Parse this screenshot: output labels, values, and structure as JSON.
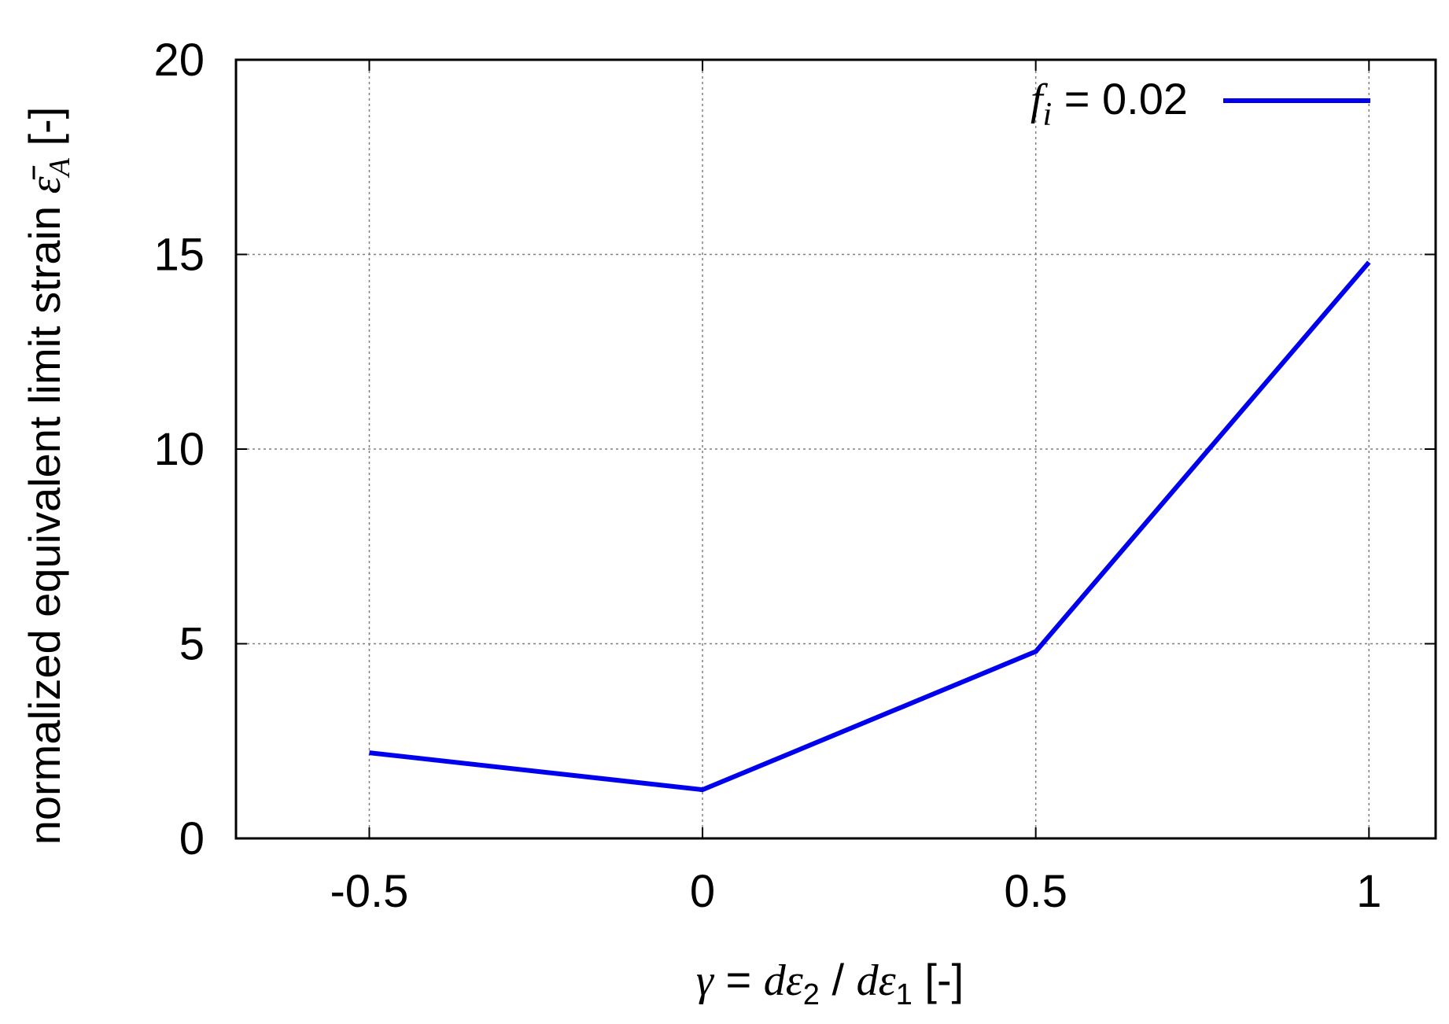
{
  "chart_data": {
    "type": "line",
    "title": "",
    "xlabel": {
      "parts": [
        "γ",
        " = ",
        "d",
        "ε",
        "2",
        " / ",
        "d",
        "ε",
        "1",
        " [-]"
      ]
    },
    "ylabel": {
      "parts": [
        "normalized equivalent limit strain ",
        "ε̄",
        "A",
        " [-]"
      ]
    },
    "xlim": [
      -0.7,
      1.1
    ],
    "ylim": [
      0,
      20
    ],
    "xticks": [
      -0.5,
      0,
      0.5,
      1
    ],
    "xtick_labels": [
      "-0.5",
      "0",
      "0.5",
      "1"
    ],
    "yticks": [
      0,
      5,
      10,
      15,
      20
    ],
    "ytick_labels": [
      "0",
      "5",
      "10",
      "15",
      "20"
    ],
    "grid": true,
    "legend_position": "top-right",
    "series": [
      {
        "name": {
          "parts": [
            "f",
            "i",
            " = 0.02"
          ]
        },
        "color": "#0000ee",
        "x": [
          -0.5,
          0,
          0.5,
          1
        ],
        "y": [
          2.2,
          1.25,
          4.8,
          14.8
        ]
      }
    ]
  }
}
